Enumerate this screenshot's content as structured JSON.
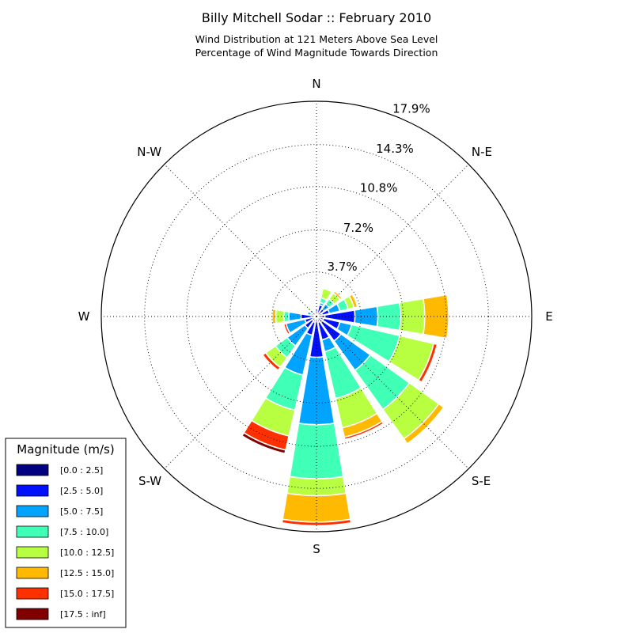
{
  "chart_data": {
    "type": "windrose",
    "title": "Billy Mitchell Sodar :: February 2010",
    "subtitle_lines": [
      "Wind Distribution at 121 Meters Above Sea Level",
      "Percentage of Wind Magnitude Towards Direction"
    ],
    "directions": [
      "N",
      "N-E",
      "E",
      "S-E",
      "S",
      "S-W",
      "W",
      "N-W"
    ],
    "radial_tick_labels": [
      "3.7%",
      "7.2%",
      "10.8%",
      "14.3%",
      "17.9%"
    ],
    "radial_ticks": [
      3.7,
      7.2,
      10.8,
      14.3,
      17.9
    ],
    "r_max": 17.9,
    "legend_title": "Magnitude (m/s)",
    "bins": [
      {
        "label": "[0.0 : 2.5]",
        "color": "#000080"
      },
      {
        "label": "[2.5 : 5.0]",
        "color": "#0010ff"
      },
      {
        "label": "[5.0 : 7.5]",
        "color": "#00a4ff"
      },
      {
        "label": "[7.5 : 10.0]",
        "color": "#40ffb7"
      },
      {
        "label": "[10.0 : 12.5]",
        "color": "#b7ff40"
      },
      {
        "label": "[12.5 : 15.0]",
        "color": "#ffb900"
      },
      {
        "label": "[15.0 : 17.5]",
        "color": "#ff3000"
      },
      {
        "label": "[17.5 : inf]",
        "color": "#800000"
      }
    ],
    "sector_angles_deg": [
      0,
      22.5,
      45,
      67.5,
      90,
      112.5,
      135,
      157.5,
      180,
      202.5,
      225,
      247.5,
      270,
      292.5,
      315,
      337.5
    ],
    "sectors": [
      {
        "dir_deg": 0,
        "cumulative": [
          0.3,
          0.6,
          0.7,
          0.7,
          0.7,
          0.7,
          0.7,
          0.7
        ]
      },
      {
        "dir_deg": 22.5,
        "cumulative": [
          0.3,
          1.0,
          1.2,
          1.6,
          2.4,
          2.4,
          2.4,
          2.4
        ]
      },
      {
        "dir_deg": 45,
        "cumulative": [
          0.3,
          0.8,
          1.3,
          1.8,
          2.4,
          2.6,
          2.6,
          2.6
        ]
      },
      {
        "dir_deg": 67.5,
        "cumulative": [
          0.5,
          1.1,
          2.0,
          2.7,
          3.2,
          3.5,
          3.5,
          3.5
        ]
      },
      {
        "dir_deg": 90,
        "cumulative": [
          0.7,
          3.2,
          5.1,
          7.0,
          9.0,
          11.0,
          11.0,
          11.0
        ]
      },
      {
        "dir_deg": 112.5,
        "cumulative": [
          0.6,
          2.0,
          3.0,
          7.1,
          10.0,
          10.0,
          10.3,
          10.3
        ]
      },
      {
        "dir_deg": 135,
        "cumulative": [
          0.6,
          2.5,
          5.5,
          9.5,
          12.5,
          13.0,
          13.0,
          13.0
        ]
      },
      {
        "dir_deg": 157.5,
        "cumulative": [
          0.5,
          2.0,
          3.0,
          7.0,
          9.5,
          10.3,
          10.5,
          10.5
        ]
      },
      {
        "dir_deg": 180,
        "cumulative": [
          0.3,
          3.4,
          9.0,
          13.5,
          14.9,
          17.1,
          17.4,
          17.4
        ]
      },
      {
        "dir_deg": 202.5,
        "cumulative": [
          0.5,
          1.6,
          5.0,
          8.0,
          10.2,
          10.2,
          11.4,
          11.7
        ]
      },
      {
        "dir_deg": 225,
        "cumulative": [
          0.4,
          1.2,
          3.0,
          4.2,
          5.2,
          5.2,
          5.5,
          5.5
        ]
      },
      {
        "dir_deg": 247.5,
        "cumulative": [
          0.3,
          1.0,
          2.6,
          2.6,
          2.6,
          2.6,
          2.8,
          2.8
        ]
      },
      {
        "dir_deg": 270,
        "cumulative": [
          0.3,
          1.3,
          2.3,
          2.7,
          3.4,
          3.7,
          3.7,
          3.7
        ]
      },
      {
        "dir_deg": 292.5,
        "cumulative": [
          0.2,
          0.5,
          0.8,
          0.9,
          0.9,
          0.9,
          0.9,
          0.9
        ]
      },
      {
        "dir_deg": 315,
        "cumulative": [
          0.2,
          0.4,
          0.7,
          0.8,
          1.0,
          1.1,
          1.1,
          1.1
        ]
      },
      {
        "dir_deg": 337.5,
        "cumulative": [
          0.3,
          0.4,
          0.5,
          0.5,
          0.5,
          0.5,
          0.5,
          0.5
        ]
      }
    ]
  }
}
